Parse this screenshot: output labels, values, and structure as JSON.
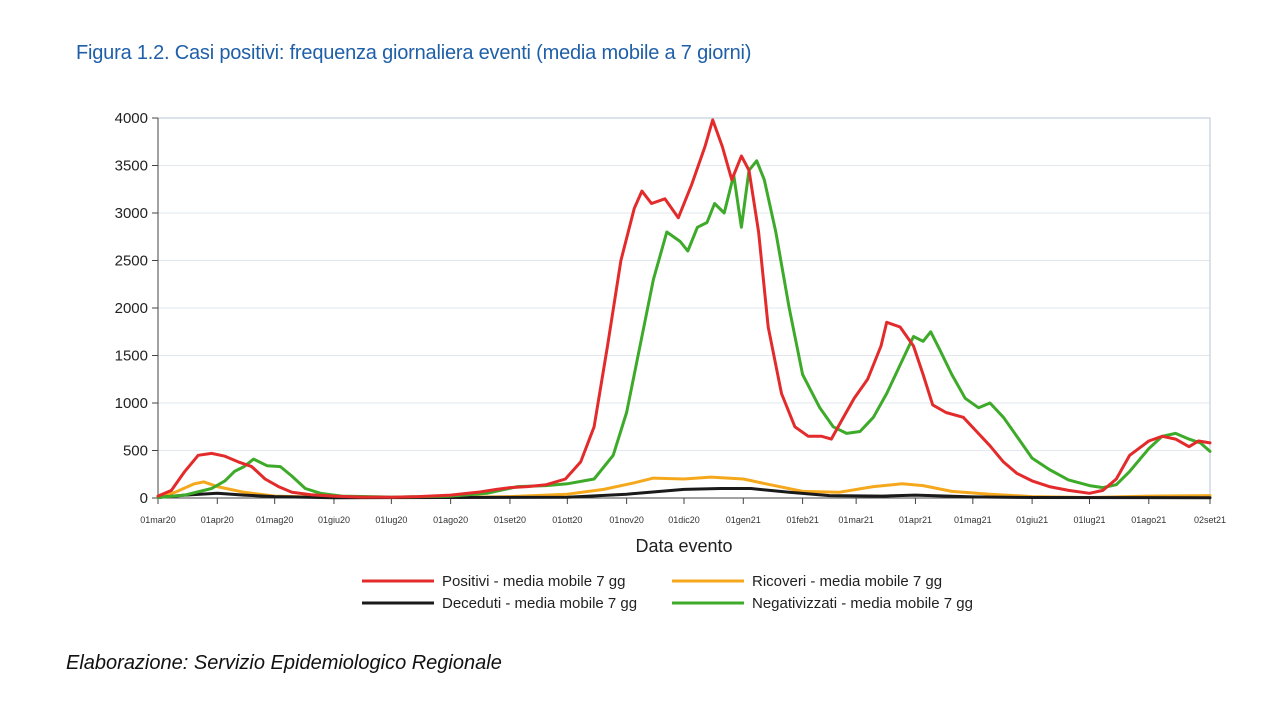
{
  "figure_title": "Figura 1.2. Casi positivi: frequenza giornaliera eventi (media mobile a 7 giorni)",
  "caption": "Elaborazione: Servizio Epidemiologico Regionale",
  "chart_data": {
    "type": "line",
    "title": "",
    "xlabel": "Data evento",
    "ylabel": "",
    "ylim": [
      0,
      4000
    ],
    "yticks": [
      0,
      500,
      1000,
      1500,
      2000,
      2500,
      3000,
      3500,
      4000
    ],
    "xlim": [
      "2020-03-01",
      "2021-09-02"
    ],
    "xticks": [
      {
        "date": "2020-03-01",
        "label": "01mar20"
      },
      {
        "date": "2020-04-01",
        "label": "01apr20"
      },
      {
        "date": "2020-05-01",
        "label": "01mag20"
      },
      {
        "date": "2020-06-01",
        "label": "01giu20"
      },
      {
        "date": "2020-07-01",
        "label": "01lug20"
      },
      {
        "date": "2020-08-01",
        "label": "01ago20"
      },
      {
        "date": "2020-09-01",
        "label": "01set20"
      },
      {
        "date": "2020-10-01",
        "label": "01ott20"
      },
      {
        "date": "2020-11-01",
        "label": "01nov20"
      },
      {
        "date": "2020-12-01",
        "label": "01dic20"
      },
      {
        "date": "2021-01-01",
        "label": "01gen21"
      },
      {
        "date": "2021-02-01",
        "label": "01feb21"
      },
      {
        "date": "2021-03-01",
        "label": "01mar21"
      },
      {
        "date": "2021-04-01",
        "label": "01apr21"
      },
      {
        "date": "2021-05-01",
        "label": "01mag21"
      },
      {
        "date": "2021-06-01",
        "label": "01giu21"
      },
      {
        "date": "2021-07-01",
        "label": "01lug21"
      },
      {
        "date": "2021-08-01",
        "label": "01ago21"
      },
      {
        "date": "2021-09-02",
        "label": "02set21"
      }
    ],
    "grid": true,
    "legend_position": "bottom",
    "series": [
      {
        "name": "Positivi - media mobile 7 gg",
        "color": "#e32b2b",
        "points": [
          [
            "2020-03-01",
            20
          ],
          [
            "2020-03-08",
            80
          ],
          [
            "2020-03-15",
            280
          ],
          [
            "2020-03-22",
            450
          ],
          [
            "2020-03-29",
            470
          ],
          [
            "2020-04-05",
            440
          ],
          [
            "2020-04-12",
            380
          ],
          [
            "2020-04-19",
            330
          ],
          [
            "2020-04-26",
            200
          ],
          [
            "2020-05-03",
            120
          ],
          [
            "2020-05-10",
            60
          ],
          [
            "2020-05-20",
            35
          ],
          [
            "2020-06-01",
            20
          ],
          [
            "2020-06-15",
            10
          ],
          [
            "2020-07-01",
            8
          ],
          [
            "2020-07-15",
            15
          ],
          [
            "2020-08-01",
            30
          ],
          [
            "2020-08-15",
            60
          ],
          [
            "2020-08-25",
            90
          ],
          [
            "2020-09-01",
            110
          ],
          [
            "2020-09-10",
            120
          ],
          [
            "2020-09-20",
            140
          ],
          [
            "2020-09-30",
            200
          ],
          [
            "2020-10-08",
            380
          ],
          [
            "2020-10-15",
            750
          ],
          [
            "2020-10-22",
            1600
          ],
          [
            "2020-10-29",
            2500
          ],
          [
            "2020-11-05",
            3050
          ],
          [
            "2020-11-09",
            3230
          ],
          [
            "2020-11-14",
            3100
          ],
          [
            "2020-11-21",
            3150
          ],
          [
            "2020-11-28",
            2950
          ],
          [
            "2020-12-05",
            3300
          ],
          [
            "2020-12-12",
            3700
          ],
          [
            "2020-12-16",
            3980
          ],
          [
            "2020-12-21",
            3700
          ],
          [
            "2020-12-26",
            3350
          ],
          [
            "2020-12-31",
            3600
          ],
          [
            "2021-01-04",
            3450
          ],
          [
            "2021-01-09",
            2800
          ],
          [
            "2021-01-14",
            1800
          ],
          [
            "2021-01-21",
            1100
          ],
          [
            "2021-01-28",
            750
          ],
          [
            "2021-02-04",
            650
          ],
          [
            "2021-02-11",
            650
          ],
          [
            "2021-02-16",
            620
          ],
          [
            "2021-02-21",
            800
          ],
          [
            "2021-02-28",
            1050
          ],
          [
            "2021-03-07",
            1250
          ],
          [
            "2021-03-14",
            1600
          ],
          [
            "2021-03-17",
            1850
          ],
          [
            "2021-03-24",
            1800
          ],
          [
            "2021-03-31",
            1600
          ],
          [
            "2021-04-05",
            1300
          ],
          [
            "2021-04-10",
            980
          ],
          [
            "2021-04-17",
            900
          ],
          [
            "2021-04-26",
            850
          ],
          [
            "2021-05-03",
            700
          ],
          [
            "2021-05-10",
            550
          ],
          [
            "2021-05-17",
            380
          ],
          [
            "2021-05-24",
            260
          ],
          [
            "2021-06-01",
            180
          ],
          [
            "2021-06-10",
            120
          ],
          [
            "2021-06-20",
            80
          ],
          [
            "2021-07-01",
            50
          ],
          [
            "2021-07-08",
            80
          ],
          [
            "2021-07-15",
            200
          ],
          [
            "2021-07-22",
            450
          ],
          [
            "2021-08-01",
            600
          ],
          [
            "2021-08-08",
            650
          ],
          [
            "2021-08-15",
            620
          ],
          [
            "2021-08-22",
            540
          ],
          [
            "2021-08-27",
            600
          ],
          [
            "2021-09-02",
            580
          ]
        ]
      },
      {
        "name": "Ricoveri - media mobile 7 gg",
        "color": "#f5a81c",
        "points": [
          [
            "2020-03-01",
            10
          ],
          [
            "2020-03-10",
            60
          ],
          [
            "2020-03-20",
            150
          ],
          [
            "2020-03-25",
            170
          ],
          [
            "2020-04-01",
            120
          ],
          [
            "2020-04-15",
            60
          ],
          [
            "2020-05-01",
            20
          ],
          [
            "2020-06-01",
            5
          ],
          [
            "2020-08-01",
            5
          ],
          [
            "2020-09-01",
            15
          ],
          [
            "2020-10-01",
            40
          ],
          [
            "2020-10-20",
            90
          ],
          [
            "2020-11-05",
            160
          ],
          [
            "2020-11-15",
            210
          ],
          [
            "2020-12-01",
            200
          ],
          [
            "2020-12-15",
            220
          ],
          [
            "2021-01-01",
            200
          ],
          [
            "2021-01-15",
            140
          ],
          [
            "2021-02-01",
            70
          ],
          [
            "2021-02-20",
            60
          ],
          [
            "2021-03-10",
            120
          ],
          [
            "2021-03-25",
            150
          ],
          [
            "2021-04-05",
            130
          ],
          [
            "2021-04-20",
            70
          ],
          [
            "2021-05-10",
            40
          ],
          [
            "2021-06-01",
            15
          ],
          [
            "2021-07-01",
            5
          ],
          [
            "2021-08-01",
            20
          ],
          [
            "2021-09-02",
            25
          ]
        ]
      },
      {
        "name": "Deceduti - media mobile 7 gg",
        "color": "#1a1a1a",
        "points": [
          [
            "2020-03-01",
            5
          ],
          [
            "2020-03-15",
            30
          ],
          [
            "2020-04-01",
            50
          ],
          [
            "2020-04-15",
            30
          ],
          [
            "2020-05-01",
            15
          ],
          [
            "2020-06-01",
            3
          ],
          [
            "2020-10-01",
            8
          ],
          [
            "2020-11-01",
            40
          ],
          [
            "2020-12-01",
            90
          ],
          [
            "2020-12-20",
            100
          ],
          [
            "2021-01-05",
            100
          ],
          [
            "2021-01-25",
            60
          ],
          [
            "2021-02-15",
            25
          ],
          [
            "2021-03-15",
            20
          ],
          [
            "2021-04-01",
            30
          ],
          [
            "2021-05-01",
            12
          ],
          [
            "2021-06-01",
            5
          ],
          [
            "2021-09-02",
            3
          ]
        ]
      },
      {
        "name": "Negativizzati - media mobile 7 gg",
        "color": "#3daa2a",
        "points": [
          [
            "2020-03-01",
            5
          ],
          [
            "2020-03-15",
            30
          ],
          [
            "2020-03-29",
            100
          ],
          [
            "2020-04-05",
            180
          ],
          [
            "2020-04-10",
            280
          ],
          [
            "2020-04-15",
            330
          ],
          [
            "2020-04-20",
            410
          ],
          [
            "2020-04-27",
            340
          ],
          [
            "2020-05-04",
            330
          ],
          [
            "2020-05-10",
            230
          ],
          [
            "2020-05-17",
            100
          ],
          [
            "2020-05-25",
            50
          ],
          [
            "2020-06-05",
            20
          ],
          [
            "2020-07-01",
            10
          ],
          [
            "2020-08-01",
            20
          ],
          [
            "2020-08-20",
            50
          ],
          [
            "2020-09-05",
            120
          ],
          [
            "2020-09-20",
            130
          ],
          [
            "2020-10-01",
            150
          ],
          [
            "2020-10-15",
            200
          ],
          [
            "2020-10-25",
            450
          ],
          [
            "2020-11-01",
            900
          ],
          [
            "2020-11-08",
            1600
          ],
          [
            "2020-11-15",
            2300
          ],
          [
            "2020-11-22",
            2800
          ],
          [
            "2020-11-29",
            2700
          ],
          [
            "2020-12-03",
            2600
          ],
          [
            "2020-12-08",
            2850
          ],
          [
            "2020-12-13",
            2900
          ],
          [
            "2020-12-17",
            3100
          ],
          [
            "2020-12-22",
            3000
          ],
          [
            "2020-12-27",
            3400
          ],
          [
            "2020-12-31",
            2850
          ],
          [
            "2021-01-04",
            3450
          ],
          [
            "2021-01-08",
            3550
          ],
          [
            "2021-01-12",
            3350
          ],
          [
            "2021-01-18",
            2800
          ],
          [
            "2021-01-25",
            2000
          ],
          [
            "2021-02-01",
            1300
          ],
          [
            "2021-02-10",
            950
          ],
          [
            "2021-02-17",
            750
          ],
          [
            "2021-02-24",
            680
          ],
          [
            "2021-03-03",
            700
          ],
          [
            "2021-03-10",
            850
          ],
          [
            "2021-03-17",
            1100
          ],
          [
            "2021-03-24",
            1400
          ],
          [
            "2021-03-31",
            1700
          ],
          [
            "2021-04-05",
            1650
          ],
          [
            "2021-04-09",
            1750
          ],
          [
            "2021-04-14",
            1550
          ],
          [
            "2021-04-20",
            1300
          ],
          [
            "2021-04-27",
            1050
          ],
          [
            "2021-05-04",
            950
          ],
          [
            "2021-05-10",
            1000
          ],
          [
            "2021-05-17",
            850
          ],
          [
            "2021-05-24",
            650
          ],
          [
            "2021-06-01",
            420
          ],
          [
            "2021-06-10",
            300
          ],
          [
            "2021-06-20",
            190
          ],
          [
            "2021-07-01",
            130
          ],
          [
            "2021-07-08",
            110
          ],
          [
            "2021-07-15",
            140
          ],
          [
            "2021-07-22",
            280
          ],
          [
            "2021-08-01",
            520
          ],
          [
            "2021-08-08",
            650
          ],
          [
            "2021-08-15",
            680
          ],
          [
            "2021-08-22",
            620
          ],
          [
            "2021-08-28",
            580
          ],
          [
            "2021-09-02",
            490
          ]
        ]
      }
    ]
  }
}
